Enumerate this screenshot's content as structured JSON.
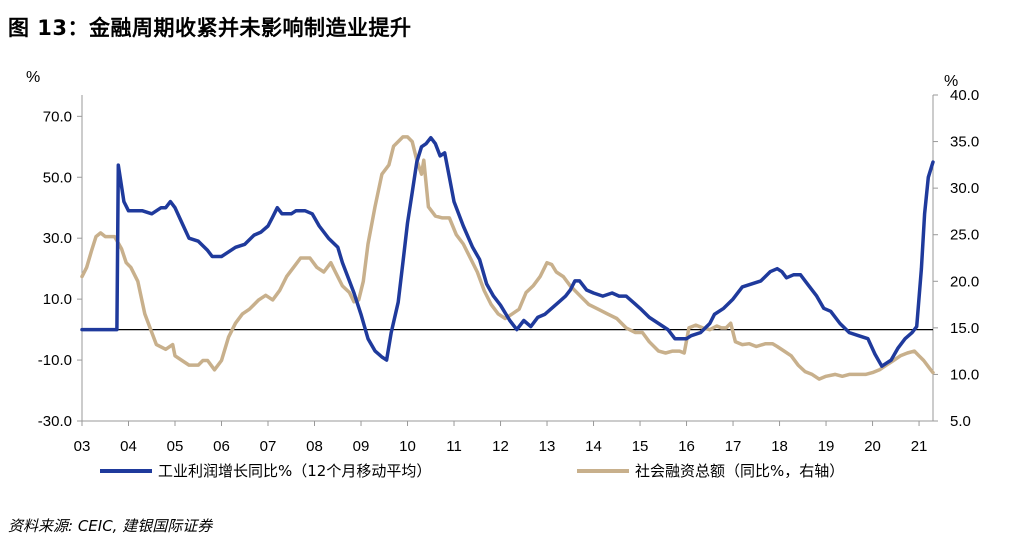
{
  "title": "图 13：金融周期收紧并未影响制造业提升",
  "source": "资料来源: CEIC, 建银国际证券",
  "chart_data": {
    "type": "line",
    "left_axis": {
      "unit_label": "%",
      "ticks": [
        "70.0",
        "50.0",
        "30.0",
        "10.0",
        "-10.0",
        "-30.0"
      ],
      "tick_values": [
        70,
        50,
        30,
        10,
        -10,
        -30
      ],
      "ylim": [
        -30,
        77
      ]
    },
    "right_axis": {
      "unit_label": "%",
      "ticks": [
        "40.0",
        "35.0",
        "30.0",
        "25.0",
        "20.0",
        "15.0",
        "10.0",
        "5.0"
      ],
      "tick_values": [
        40,
        35,
        30,
        25,
        20,
        15,
        10,
        5
      ],
      "ylim": [
        5,
        40
      ]
    },
    "x_ticks": [
      "03",
      "04",
      "05",
      "06",
      "07",
      "08",
      "09",
      "10",
      "11",
      "12",
      "13",
      "14",
      "15",
      "16",
      "17",
      "18",
      "19",
      "20",
      "21"
    ],
    "x_tick_values": [
      2003,
      2004,
      2005,
      2006,
      2007,
      2008,
      2009,
      2010,
      2011,
      2012,
      2013,
      2014,
      2015,
      2016,
      2017,
      2018,
      2019,
      2020,
      2021
    ],
    "xlim": [
      2003,
      2021.3
    ],
    "grid": false,
    "legend_position": "bottom",
    "series": [
      {
        "name": "工业利润增长同比%（12个月移动平均）",
        "axis": "left",
        "color": "#1f3a9c",
        "points": [
          [
            2003.0,
            0
          ],
          [
            2003.75,
            0
          ],
          [
            2003.78,
            54
          ],
          [
            2003.9,
            42
          ],
          [
            2004.0,
            39
          ],
          [
            2004.3,
            39
          ],
          [
            2004.5,
            38
          ],
          [
            2004.7,
            40
          ],
          [
            2004.8,
            40
          ],
          [
            2004.9,
            42
          ],
          [
            2005.0,
            40
          ],
          [
            2005.15,
            35
          ],
          [
            2005.3,
            30
          ],
          [
            2005.5,
            29
          ],
          [
            2005.7,
            26
          ],
          [
            2005.8,
            24
          ],
          [
            2006.0,
            24
          ],
          [
            2006.1,
            25
          ],
          [
            2006.3,
            27
          ],
          [
            2006.5,
            28
          ],
          [
            2006.7,
            31
          ],
          [
            2006.85,
            32
          ],
          [
            2007.0,
            34
          ],
          [
            2007.1,
            37
          ],
          [
            2007.2,
            40
          ],
          [
            2007.3,
            38
          ],
          [
            2007.5,
            38
          ],
          [
            2007.6,
            39
          ],
          [
            2007.8,
            39
          ],
          [
            2007.95,
            38
          ],
          [
            2008.1,
            34
          ],
          [
            2008.3,
            30
          ],
          [
            2008.5,
            27
          ],
          [
            2008.6,
            22
          ],
          [
            2008.75,
            16
          ],
          [
            2008.85,
            12
          ],
          [
            2009.0,
            5
          ],
          [
            2009.15,
            -3
          ],
          [
            2009.3,
            -7
          ],
          [
            2009.45,
            -9
          ],
          [
            2009.55,
            -10
          ],
          [
            2009.65,
            -1
          ],
          [
            2009.8,
            9
          ],
          [
            2009.9,
            22
          ],
          [
            2010.0,
            35
          ],
          [
            2010.1,
            45
          ],
          [
            2010.2,
            55
          ],
          [
            2010.3,
            60
          ],
          [
            2010.4,
            61
          ],
          [
            2010.5,
            63
          ],
          [
            2010.6,
            61
          ],
          [
            2010.7,
            57
          ],
          [
            2010.8,
            58
          ],
          [
            2010.9,
            50
          ],
          [
            2011.0,
            42
          ],
          [
            2011.2,
            34
          ],
          [
            2011.4,
            27
          ],
          [
            2011.55,
            23
          ],
          [
            2011.7,
            15
          ],
          [
            2011.85,
            11
          ],
          [
            2012.0,
            8
          ],
          [
            2012.2,
            3
          ],
          [
            2012.35,
            0
          ],
          [
            2012.5,
            3
          ],
          [
            2012.65,
            1
          ],
          [
            2012.8,
            4
          ],
          [
            2012.95,
            5
          ],
          [
            2013.1,
            7
          ],
          [
            2013.25,
            9
          ],
          [
            2013.4,
            11
          ],
          [
            2013.5,
            13
          ],
          [
            2013.6,
            16
          ],
          [
            2013.7,
            16
          ],
          [
            2013.85,
            13
          ],
          [
            2014.0,
            12
          ],
          [
            2014.2,
            11
          ],
          [
            2014.4,
            12
          ],
          [
            2014.55,
            11
          ],
          [
            2014.7,
            11
          ],
          [
            2014.85,
            9
          ],
          [
            2015.0,
            7
          ],
          [
            2015.2,
            4
          ],
          [
            2015.4,
            2
          ],
          [
            2015.6,
            0
          ],
          [
            2015.75,
            -3
          ],
          [
            2016.0,
            -3
          ],
          [
            2016.1,
            -2
          ],
          [
            2016.3,
            -1
          ],
          [
            2016.5,
            2
          ],
          [
            2016.6,
            5
          ],
          [
            2016.8,
            7
          ],
          [
            2017.0,
            10
          ],
          [
            2017.2,
            14
          ],
          [
            2017.4,
            15
          ],
          [
            2017.6,
            16
          ],
          [
            2017.8,
            19
          ],
          [
            2017.95,
            20
          ],
          [
            2018.05,
            19
          ],
          [
            2018.15,
            17
          ],
          [
            2018.3,
            18
          ],
          [
            2018.45,
            18
          ],
          [
            2018.6,
            15
          ],
          [
            2018.8,
            11
          ],
          [
            2018.95,
            7
          ],
          [
            2019.1,
            6
          ],
          [
            2019.3,
            2
          ],
          [
            2019.5,
            -1
          ],
          [
            2019.7,
            -2
          ],
          [
            2019.9,
            -3
          ],
          [
            2020.05,
            -8
          ],
          [
            2020.2,
            -12
          ],
          [
            2020.4,
            -10
          ],
          [
            2020.55,
            -6
          ],
          [
            2020.7,
            -3
          ],
          [
            2020.85,
            -1
          ],
          [
            2020.95,
            1
          ],
          [
            2021.05,
            20
          ],
          [
            2021.12,
            38
          ],
          [
            2021.2,
            50
          ],
          [
            2021.3,
            55
          ]
        ]
      },
      {
        "name": "社会融资总额（同比%，右轴）",
        "axis": "right",
        "color": "#c8b08c",
        "points": [
          [
            2003.0,
            20.5
          ],
          [
            2003.1,
            21.5
          ],
          [
            2003.2,
            23.2
          ],
          [
            2003.3,
            24.8
          ],
          [
            2003.4,
            25.2
          ],
          [
            2003.5,
            24.8
          ],
          [
            2003.7,
            24.8
          ],
          [
            2003.85,
            23.5
          ],
          [
            2003.95,
            22
          ],
          [
            2004.05,
            21.5
          ],
          [
            2004.2,
            20
          ],
          [
            2004.35,
            16.5
          ],
          [
            2004.5,
            14.5
          ],
          [
            2004.6,
            13.2
          ],
          [
            2004.8,
            12.7
          ],
          [
            2004.95,
            13.2
          ],
          [
            2005.0,
            12
          ],
          [
            2005.15,
            11.5
          ],
          [
            2005.3,
            11
          ],
          [
            2005.5,
            11
          ],
          [
            2005.6,
            11.5
          ],
          [
            2005.7,
            11.5
          ],
          [
            2005.85,
            10.5
          ],
          [
            2006.0,
            11.5
          ],
          [
            2006.15,
            14
          ],
          [
            2006.3,
            15.5
          ],
          [
            2006.45,
            16.5
          ],
          [
            2006.6,
            17
          ],
          [
            2006.8,
            18
          ],
          [
            2006.95,
            18.5
          ],
          [
            2007.1,
            18
          ],
          [
            2007.25,
            19
          ],
          [
            2007.4,
            20.5
          ],
          [
            2007.55,
            21.5
          ],
          [
            2007.7,
            22.5
          ],
          [
            2007.9,
            22.5
          ],
          [
            2008.05,
            21.5
          ],
          [
            2008.2,
            21
          ],
          [
            2008.35,
            22
          ],
          [
            2008.45,
            21
          ],
          [
            2008.6,
            19.5
          ],
          [
            2008.75,
            18.8
          ],
          [
            2008.85,
            17.8
          ],
          [
            2008.95,
            18
          ],
          [
            2009.05,
            20
          ],
          [
            2009.15,
            24
          ],
          [
            2009.3,
            28
          ],
          [
            2009.45,
            31.5
          ],
          [
            2009.6,
            32.5
          ],
          [
            2009.7,
            34.5
          ],
          [
            2009.8,
            35
          ],
          [
            2009.9,
            35.5
          ],
          [
            2010.0,
            35.5
          ],
          [
            2010.1,
            35
          ],
          [
            2010.2,
            33
          ],
          [
            2010.3,
            31.5
          ],
          [
            2010.35,
            33
          ],
          [
            2010.45,
            28
          ],
          [
            2010.6,
            27
          ],
          [
            2010.75,
            26.8
          ],
          [
            2010.9,
            26.8
          ],
          [
            2011.05,
            25
          ],
          [
            2011.2,
            24
          ],
          [
            2011.35,
            22.5
          ],
          [
            2011.5,
            21
          ],
          [
            2011.65,
            19
          ],
          [
            2011.8,
            17.5
          ],
          [
            2011.95,
            16.5
          ],
          [
            2012.1,
            16
          ],
          [
            2012.25,
            16.5
          ],
          [
            2012.4,
            17
          ],
          [
            2012.55,
            18.8
          ],
          [
            2012.7,
            19.5
          ],
          [
            2012.85,
            20.5
          ],
          [
            2013.0,
            22
          ],
          [
            2013.1,
            21.8
          ],
          [
            2013.2,
            21
          ],
          [
            2013.35,
            20.5
          ],
          [
            2013.5,
            19.5
          ],
          [
            2013.7,
            18.5
          ],
          [
            2013.9,
            17.5
          ],
          [
            2014.1,
            17
          ],
          [
            2014.3,
            16.5
          ],
          [
            2014.5,
            16
          ],
          [
            2014.7,
            15
          ],
          [
            2014.9,
            14.5
          ],
          [
            2015.05,
            14.5
          ],
          [
            2015.2,
            13.5
          ],
          [
            2015.4,
            12.5
          ],
          [
            2015.55,
            12.3
          ],
          [
            2015.7,
            12.5
          ],
          [
            2015.85,
            12.5
          ],
          [
            2015.95,
            12.3
          ],
          [
            2016.05,
            15
          ],
          [
            2016.2,
            15.3
          ],
          [
            2016.35,
            15
          ],
          [
            2016.5,
            14.8
          ],
          [
            2016.65,
            15.2
          ],
          [
            2016.75,
            15
          ],
          [
            2016.85,
            15
          ],
          [
            2016.95,
            15.5
          ],
          [
            2017.05,
            13.5
          ],
          [
            2017.2,
            13.2
          ],
          [
            2017.35,
            13.3
          ],
          [
            2017.5,
            13
          ],
          [
            2017.7,
            13.3
          ],
          [
            2017.85,
            13.3
          ],
          [
            2017.95,
            13
          ],
          [
            2018.1,
            12.5
          ],
          [
            2018.25,
            12
          ],
          [
            2018.4,
            11
          ],
          [
            2018.55,
            10.3
          ],
          [
            2018.7,
            10
          ],
          [
            2018.85,
            9.5
          ],
          [
            2019.0,
            9.8
          ],
          [
            2019.2,
            10
          ],
          [
            2019.35,
            9.8
          ],
          [
            2019.5,
            10
          ],
          [
            2019.7,
            10
          ],
          [
            2019.85,
            10
          ],
          [
            2020.0,
            10.2
          ],
          [
            2020.15,
            10.5
          ],
          [
            2020.3,
            11
          ],
          [
            2020.45,
            11.5
          ],
          [
            2020.6,
            12
          ],
          [
            2020.75,
            12.3
          ],
          [
            2020.9,
            12.5
          ],
          [
            2021.0,
            12
          ],
          [
            2021.1,
            11.5
          ],
          [
            2021.25,
            10.5
          ],
          [
            2021.3,
            10.2
          ]
        ]
      }
    ]
  }
}
